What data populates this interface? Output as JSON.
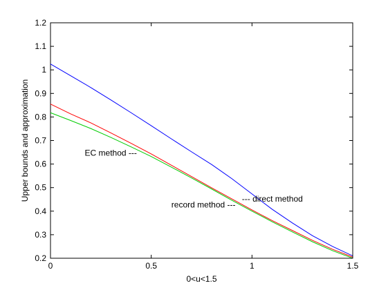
{
  "chart_data": {
    "type": "line",
    "title": "",
    "xlabel": "0<u<1.5",
    "ylabel": "Upper bounds and approximation",
    "xlim": [
      0,
      1.5
    ],
    "ylim": [
      0.2,
      1.2
    ],
    "xticks": [
      0,
      0.5,
      1,
      1.5
    ],
    "xtick_labels": [
      "0",
      "0.5",
      "1",
      "1.5"
    ],
    "yticks": [
      0.2,
      0.3,
      0.4,
      0.5,
      0.6,
      0.7,
      0.8,
      0.9,
      1.0,
      1.1,
      1.2
    ],
    "ytick_labels": [
      "0.2",
      "0.3",
      "0.4",
      "0.5",
      "0.6",
      "0.7",
      "0.8",
      "0.9",
      "1",
      "1.1",
      "1.2"
    ],
    "grid": false,
    "series": [
      {
        "key": "blue",
        "color": "#0000ff",
        "x": [
          0,
          0.1,
          0.2,
          0.3,
          0.4,
          0.5,
          0.6,
          0.7,
          0.8,
          0.9,
          1.0,
          1.1,
          1.2,
          1.3,
          1.4,
          1.5
        ],
        "y": [
          1.025,
          0.975,
          0.925,
          0.872,
          0.818,
          0.763,
          0.707,
          0.652,
          0.598,
          0.538,
          0.473,
          0.408,
          0.35,
          0.296,
          0.25,
          0.21
        ]
      },
      {
        "key": "red",
        "color": "#ff0000",
        "x": [
          0,
          0.1,
          0.2,
          0.3,
          0.4,
          0.5,
          0.6,
          0.7,
          0.8,
          0.9,
          1.0,
          1.1,
          1.2,
          1.3,
          1.4,
          1.5
        ],
        "y": [
          0.855,
          0.813,
          0.775,
          0.732,
          0.688,
          0.643,
          0.595,
          0.547,
          0.499,
          0.452,
          0.405,
          0.36,
          0.318,
          0.276,
          0.238,
          0.205
        ]
      },
      {
        "key": "green",
        "color": "#00cc00",
        "x": [
          0,
          0.1,
          0.2,
          0.3,
          0.4,
          0.5,
          0.6,
          0.7,
          0.8,
          0.9,
          1.0,
          1.1,
          1.2,
          1.3,
          1.4,
          1.5
        ],
        "y": [
          0.818,
          0.785,
          0.751,
          0.713,
          0.673,
          0.632,
          0.587,
          0.541,
          0.494,
          0.446,
          0.4,
          0.355,
          0.312,
          0.27,
          0.232,
          0.2
        ]
      }
    ],
    "annotations": [
      {
        "text": "EC method ---",
        "x": 0.17,
        "y": 0.635
      },
      {
        "text": "--- direct method",
        "x": 0.95,
        "y": 0.44
      },
      {
        "text": "record method ---",
        "x": 0.6,
        "y": 0.415
      }
    ]
  }
}
